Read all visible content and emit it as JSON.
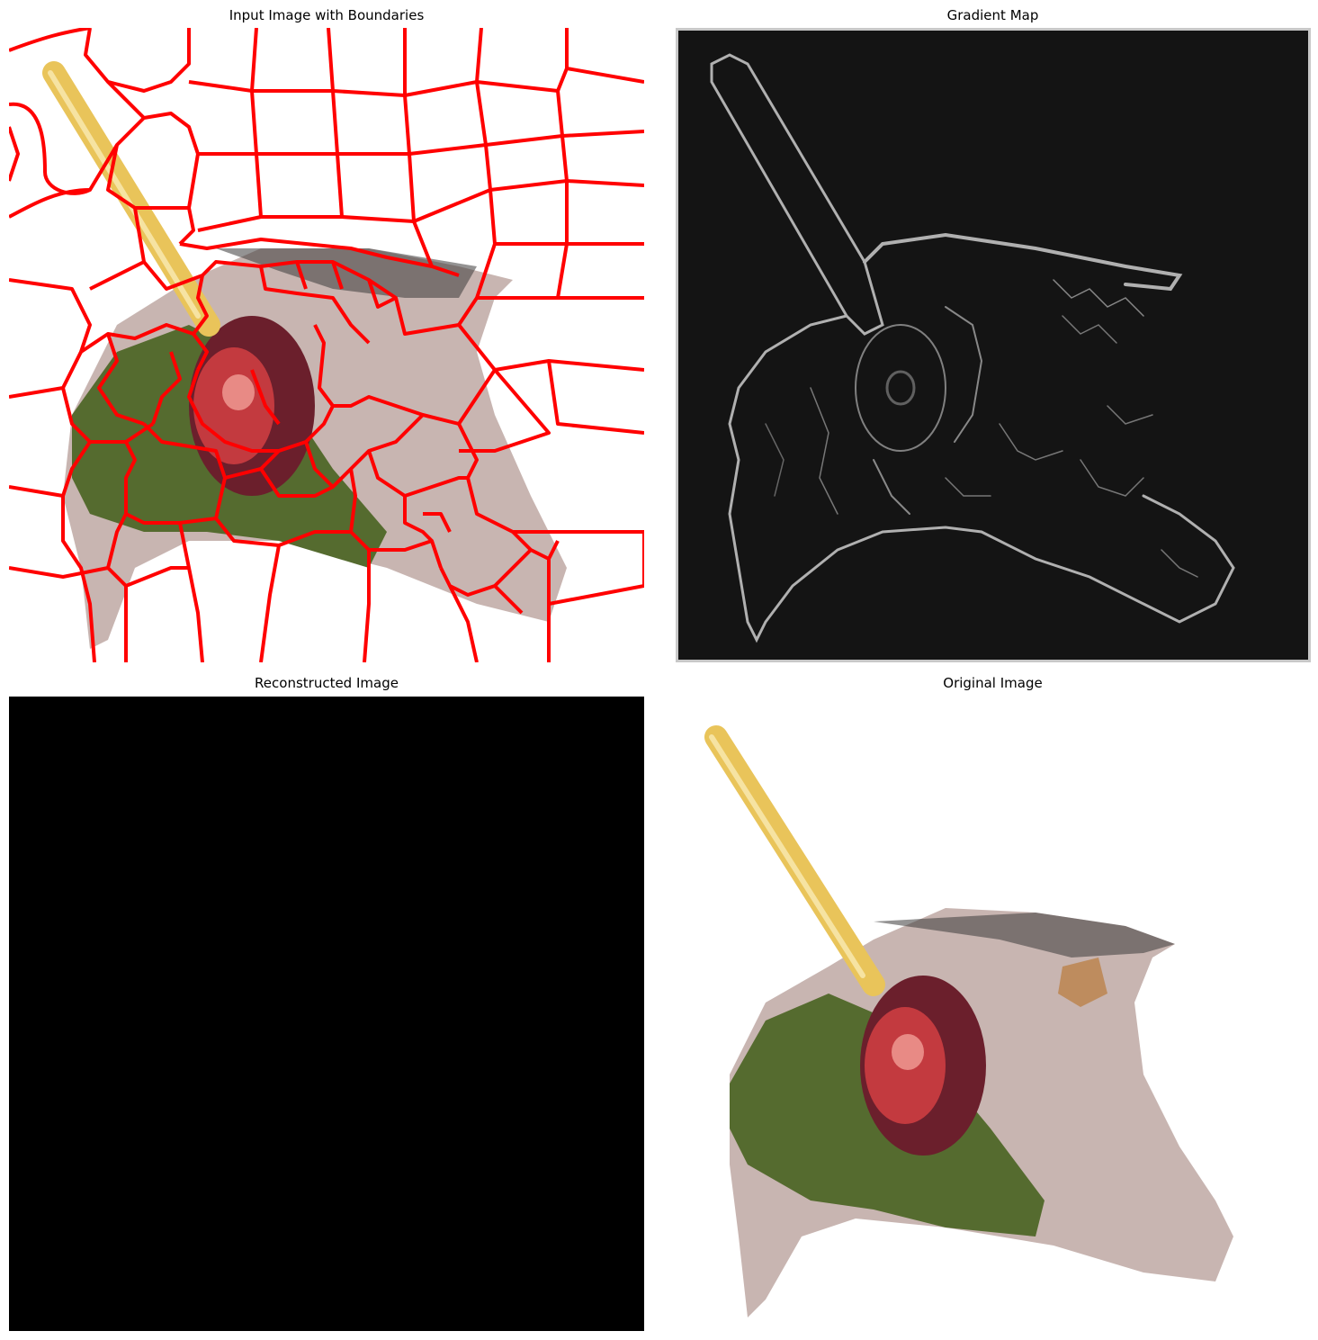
{
  "figure": {
    "panels": [
      {
        "id": "input",
        "title": "Input Image with Boundaries"
      },
      {
        "id": "gradient",
        "title": "Gradient Map"
      },
      {
        "id": "reconstructed",
        "title": "Reconstructed Image"
      },
      {
        "id": "original",
        "title": "Original Image"
      }
    ]
  },
  "colors": {
    "boundary": "#ff0000",
    "gradient_bg": "#141414",
    "reconstructed_bg": "#000000",
    "stick": "#e9c45a",
    "cherry": "#b8303a",
    "grass": "#556b2f",
    "rock": "#c9b6b2"
  }
}
